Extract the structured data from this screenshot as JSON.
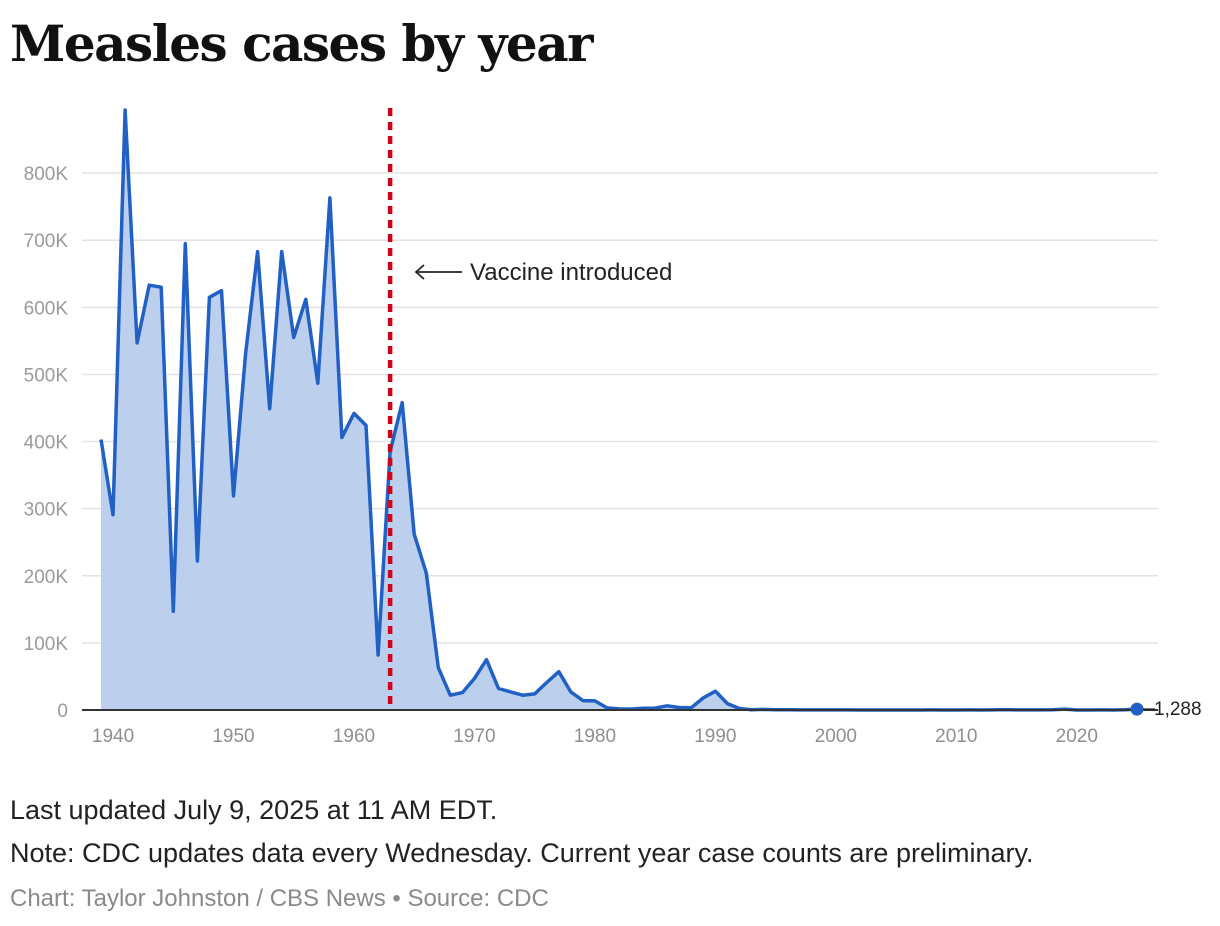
{
  "title": "Measles cases by year",
  "footer": {
    "updated": "Last updated July 9, 2025 at 11 AM EDT.",
    "note": "Note: CDC updates data every Wednesday. Current year case counts are preliminary.",
    "credit": "Chart: Taylor Johnston / CBS News • Source: CDC"
  },
  "colors": {
    "line": "#2160c4",
    "area": "#bcd0ee",
    "vaccine_line": "#d0021b",
    "grid": "#e2e2e2",
    "axis": "#333333"
  },
  "chart_data": {
    "type": "area",
    "title": "Measles cases by year",
    "xlabel": "",
    "ylabel": "",
    "xlim": [
      1937,
      2030
    ],
    "ylim": [
      0,
      900000
    ],
    "x_ticks": [
      1940,
      1950,
      1960,
      1970,
      1980,
      1990,
      2000,
      2010,
      2020
    ],
    "x_tick_labels": [
      "1940",
      "1950",
      "1960",
      "1970",
      "1980",
      "1990",
      "2000",
      "2010",
      "2020"
    ],
    "y_ticks": [
      0,
      100000,
      200000,
      300000,
      400000,
      500000,
      600000,
      700000,
      800000
    ],
    "y_tick_labels": [
      "0",
      "100K",
      "200K",
      "300K",
      "400K",
      "500K",
      "600K",
      "700K",
      "800K"
    ],
    "grid": true,
    "x": [
      1939,
      1940,
      1941,
      1942,
      1943,
      1944,
      1945,
      1946,
      1947,
      1948,
      1949,
      1950,
      1951,
      1952,
      1953,
      1954,
      1955,
      1956,
      1957,
      1958,
      1959,
      1960,
      1961,
      1962,
      1963,
      1964,
      1965,
      1966,
      1967,
      1968,
      1969,
      1970,
      1971,
      1972,
      1973,
      1974,
      1975,
      1976,
      1977,
      1978,
      1979,
      1980,
      1981,
      1982,
      1983,
      1984,
      1985,
      1986,
      1987,
      1988,
      1989,
      1990,
      1991,
      1992,
      1993,
      1994,
      1995,
      1996,
      1997,
      1998,
      1999,
      2000,
      2001,
      2002,
      2003,
      2004,
      2005,
      2006,
      2007,
      2008,
      2009,
      2010,
      2011,
      2012,
      2013,
      2014,
      2015,
      2016,
      2017,
      2018,
      2019,
      2020,
      2021,
      2022,
      2023,
      2024,
      2025
    ],
    "y": [
      403000,
      291000,
      894000,
      547000,
      633000,
      630000,
      147000,
      695000,
      222000,
      615000,
      625000,
      319000,
      531000,
      683000,
      449000,
      683000,
      555000,
      612000,
      487000,
      763000,
      406000,
      442000,
      424000,
      82000,
      385000,
      458000,
      262000,
      204000,
      63000,
      22000,
      26000,
      47000,
      75000,
      32000,
      27000,
      22000,
      24000,
      41000,
      57000,
      27000,
      14000,
      13500,
      3100,
      1700,
      1500,
      2600,
      2800,
      6300,
      3700,
      3400,
      18000,
      28000,
      9600,
      2200,
      310,
      960,
      310,
      510,
      140,
      100,
      100,
      86,
      116,
      44,
      56,
      37,
      66,
      55,
      43,
      140,
      71,
      63,
      220,
      55,
      187,
      667,
      188,
      86,
      120,
      375,
      1274,
      13,
      49,
      121,
      59,
      285,
      1288
    ],
    "annotations": [
      {
        "x": 1963,
        "label": "Vaccine introduced"
      },
      {
        "x": 2025,
        "label": "1,288"
      }
    ]
  }
}
